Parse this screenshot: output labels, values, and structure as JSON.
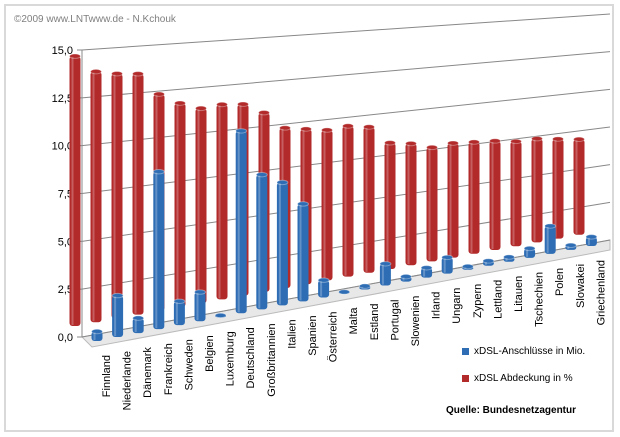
{
  "copyright": "©2009 www.LNTwww.de - N.Kchouk",
  "source": "Quelle: Bundesnetzagentur",
  "chart_data": {
    "type": "bar",
    "subtype": "3d-cylinder",
    "categories": [
      "Finnland",
      "Niederlande",
      "Dänemark",
      "Frankreich",
      "Schweden",
      "Belgien",
      "Luxemburg",
      "Deutschland",
      "Großbritannien",
      "Italien",
      "Spanien",
      "Österreich",
      "Malta",
      "Estland",
      "Portugal",
      "Slowenien",
      "Irland",
      "Ungarn",
      "Zypern",
      "Lettland",
      "Litauen",
      "Tschechien",
      "Polen",
      "Slowakei",
      "Griechenland"
    ],
    "series": [
      {
        "name": "xDSL-Anschlüsse in Mio.",
        "color": "#2e6db4",
        "values": [
          0.5,
          2.2,
          0.8,
          8.5,
          1.3,
          1.6,
          0.1,
          10.2,
          7.6,
          7.0,
          5.6,
          1.0,
          0.05,
          0.2,
          1.3,
          0.3,
          0.6,
          1.0,
          0.2,
          0.3,
          0.3,
          0.6,
          1.8,
          0.3,
          0.6
        ]
      },
      {
        "name": "xDSL Abdeckung in %",
        "color": "#b22a2a",
        "values": [
          14.2,
          13.3,
          13.1,
          13.0,
          11.8,
          11.2,
          10.8,
          10.9,
          10.8,
          10.2,
          9.2,
          9.0,
          8.8,
          8.9,
          8.7,
          7.6,
          7.4,
          7.0,
          7.1,
          7.0,
          6.9,
          6.7,
          6.7,
          6.5,
          6.3
        ]
      }
    ],
    "yticks": [
      "0,0",
      "2,5",
      "5,0",
      "7,5",
      "10,0",
      "12,5",
      "15,0"
    ],
    "ylim": [
      0,
      15
    ],
    "grid": true,
    "legend": "bottom-right"
  }
}
